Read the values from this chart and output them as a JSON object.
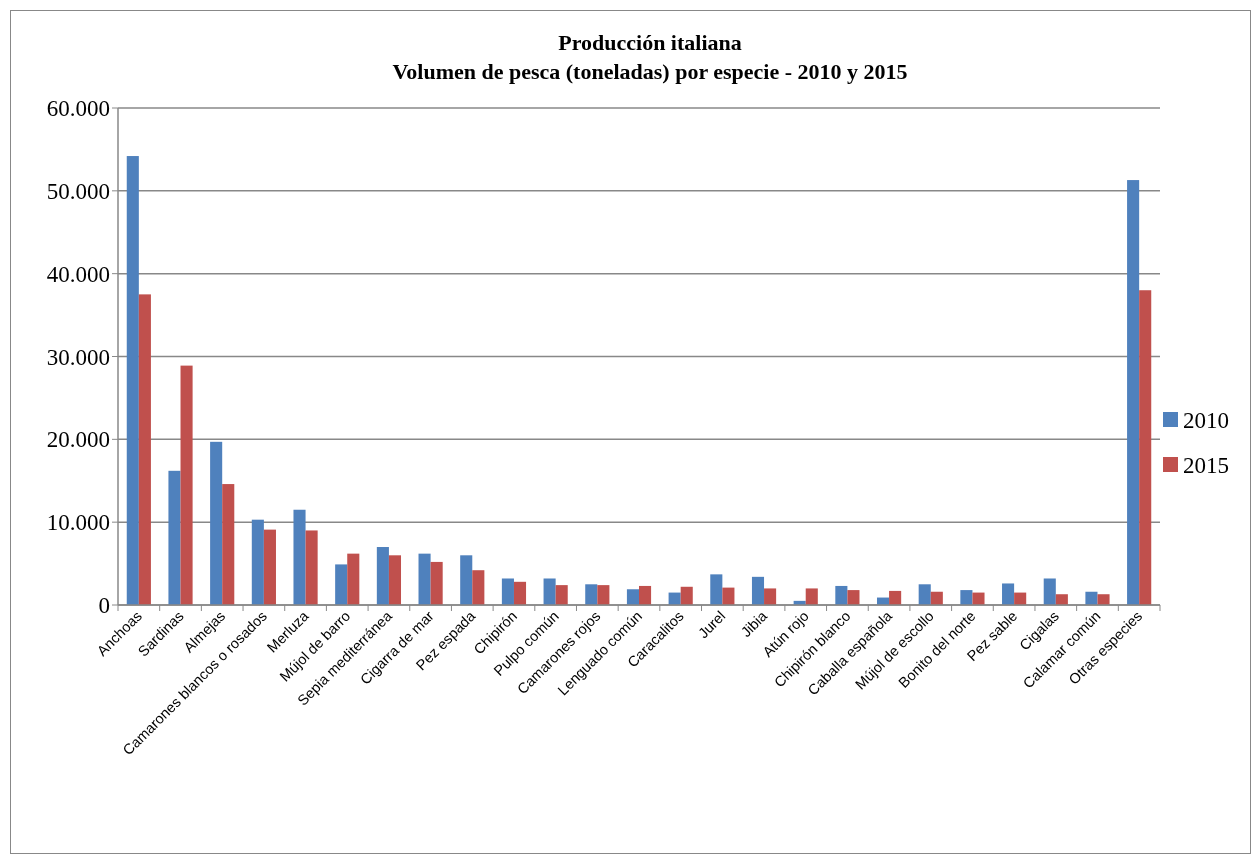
{
  "chart_data": {
    "type": "bar",
    "title": "Producción italiana\nVolumen de pesca (toneladas) por especie - 2010 y 2015",
    "categories": [
      "Anchoas",
      "Sardinas",
      "Almejas",
      "Camarones blancos o rosados",
      "Merluza",
      "Mújol de barro",
      "Sepia mediterránea",
      "Cigarra de mar",
      "Pez espada",
      "Chipirón",
      "Pulpo común",
      "Camarones rojos",
      "Lenguado común",
      "Caracalitos",
      "Jurel",
      "Jibia",
      "Atún rojo",
      "Chipirón blanco",
      "Caballa española",
      "Mújol de escollo",
      "Bonito del norte",
      "Pez sable",
      "Cigalas",
      "Calamar común",
      "Otras especies"
    ],
    "series": [
      {
        "name": "2010",
        "color": "#4f81bd",
        "values": [
          54200,
          16200,
          19700,
          10300,
          11500,
          4900,
          7000,
          6200,
          6000,
          3200,
          3200,
          2500,
          1900,
          1500,
          3700,
          3400,
          500,
          2300,
          900,
          2500,
          1800,
          2600,
          3200,
          1600,
          51300
        ]
      },
      {
        "name": "2015",
        "color": "#c0504d",
        "values": [
          37500,
          28900,
          14600,
          9100,
          9000,
          6200,
          6000,
          5200,
          4200,
          2800,
          2400,
          2400,
          2300,
          2200,
          2100,
          2000,
          2000,
          1800,
          1700,
          1600,
          1500,
          1500,
          1300,
          1300,
          38000
        ]
      }
    ],
    "ylim": [
      0,
      60000
    ],
    "yticks": [
      {
        "value": 0,
        "label": "0"
      },
      {
        "value": 10000,
        "label": "10.000"
      },
      {
        "value": 20000,
        "label": "20.000"
      },
      {
        "value": 30000,
        "label": "30.000"
      },
      {
        "value": 40000,
        "label": "40.000"
      },
      {
        "value": 50000,
        "label": "50.000"
      },
      {
        "value": 60000,
        "label": "60.000"
      }
    ],
    "grid": "y",
    "legend": "right"
  }
}
